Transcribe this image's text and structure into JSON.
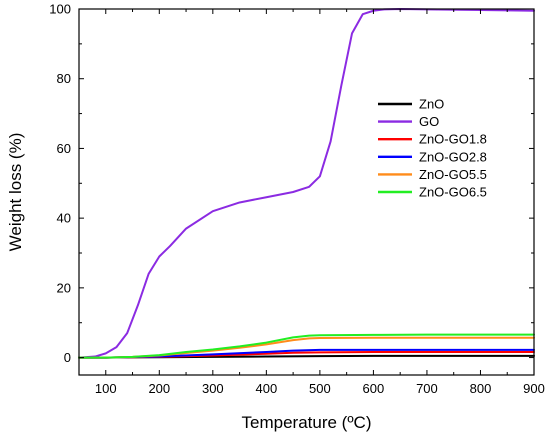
{
  "chart_data": {
    "type": "line",
    "xlabel": "Temperature (ºC)",
    "ylabel": "Weight loss (%)",
    "xlim": [
      50,
      900
    ],
    "ylim": [
      -5,
      100
    ],
    "x_ticks": [
      100,
      200,
      300,
      400,
      500,
      600,
      700,
      800,
      900
    ],
    "x_tick_labels": [
      "100",
      "200",
      "300",
      "400",
      "500",
      "600",
      "700",
      "800",
      "900"
    ],
    "y_ticks": [
      0,
      20,
      40,
      60,
      80,
      100
    ],
    "y_tick_labels": [
      "0",
      "20",
      "40",
      "60",
      "80",
      "100"
    ],
    "grid": false,
    "legend_position": "right",
    "series": [
      {
        "name": "ZnO",
        "color": "#000000",
        "x": [
          50,
          100,
          200,
          300,
          400,
          500,
          600,
          700,
          800,
          900
        ],
        "y": [
          0.0,
          0.0,
          0.1,
          0.2,
          0.3,
          0.4,
          0.5,
          0.5,
          0.5,
          0.5
        ]
      },
      {
        "name": "GO",
        "color": "#8b2be2",
        "x": [
          50,
          80,
          100,
          120,
          140,
          160,
          180,
          200,
          220,
          250,
          300,
          350,
          400,
          450,
          480,
          500,
          520,
          540,
          560,
          580,
          600,
          620,
          650,
          700,
          800,
          900
        ],
        "y": [
          0.0,
          0.3,
          1.2,
          3.0,
          7.0,
          15.0,
          24.0,
          29.0,
          32.0,
          37.0,
          42.0,
          44.5,
          46.0,
          47.5,
          49.0,
          52.0,
          62.0,
          78.0,
          93.0,
          98.5,
          99.5,
          99.9,
          100.0,
          99.9,
          99.7,
          99.5
        ]
      },
      {
        "name": "ZnO-GO1.8",
        "color": "#ff0000",
        "x": [
          50,
          100,
          200,
          300,
          400,
          450,
          500,
          600,
          700,
          800,
          900
        ],
        "y": [
          0.0,
          0.0,
          0.2,
          0.6,
          1.1,
          1.4,
          1.5,
          1.6,
          1.6,
          1.6,
          1.6
        ]
      },
      {
        "name": "ZnO-GO2.8",
        "color": "#0000ff",
        "x": [
          50,
          100,
          200,
          300,
          400,
          450,
          500,
          600,
          700,
          800,
          900
        ],
        "y": [
          0.0,
          0.0,
          0.3,
          0.9,
          1.6,
          2.0,
          2.2,
          2.2,
          2.2,
          2.2,
          2.2
        ]
      },
      {
        "name": "ZnO-GO5.5",
        "color": "#ff8c1a",
        "x": [
          50,
          100,
          150,
          200,
          250,
          300,
          350,
          400,
          450,
          480,
          500,
          600,
          700,
          800,
          900
        ],
        "y": [
          0.0,
          0.0,
          0.2,
          0.6,
          1.3,
          2.0,
          2.8,
          3.8,
          5.0,
          5.5,
          5.6,
          5.7,
          5.7,
          5.7,
          5.7
        ]
      },
      {
        "name": "ZnO-GO6.5",
        "color": "#22ee22",
        "x": [
          50,
          100,
          150,
          200,
          250,
          300,
          350,
          400,
          450,
          480,
          500,
          600,
          700,
          800,
          900
        ],
        "y": [
          0.0,
          0.0,
          0.2,
          0.7,
          1.6,
          2.3,
          3.2,
          4.3,
          5.8,
          6.3,
          6.4,
          6.5,
          6.6,
          6.6,
          6.6
        ]
      }
    ]
  }
}
